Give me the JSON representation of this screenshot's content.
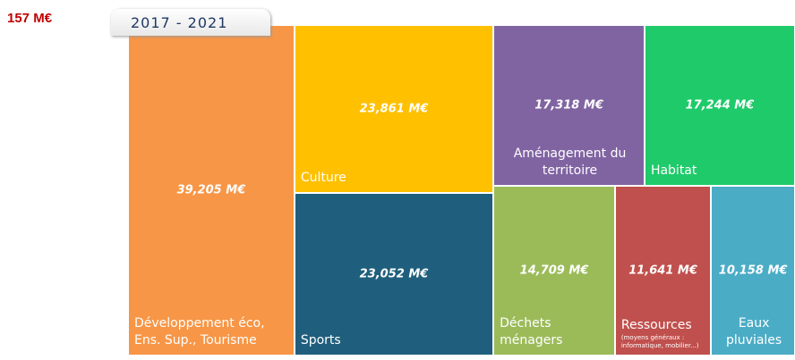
{
  "chart_data": {
    "type": "treemap",
    "title": "157 M€",
    "subtitle": "2017 - 2021",
    "categories": [
      "Développement éco, Ens. Sup., Tourisme",
      "Culture",
      "Sports",
      "Aménagement du territoire",
      "Habitat",
      "Déchets ménagers",
      "Ressources",
      "Eaux pluviales"
    ],
    "values": [
      39.205,
      23.861,
      23.052,
      17.318,
      17.244,
      14.709,
      11.641,
      10.158
    ],
    "value_labels": [
      "39,205 M€",
      "23,861 M€",
      "23,052 M€",
      "17,318 M€",
      "17,244 M€",
      "14,709 M€",
      "11,641 M€",
      "10,158 M€"
    ],
    "colors": [
      "#f79646",
      "#ffc000",
      "#1f5f7d",
      "#8064a2",
      "#1fca6a",
      "#9bbb59",
      "#c0504d",
      "#4bacc6"
    ],
    "annotations": [
      "(moyens généraux : informatique, mobilier...)"
    ]
  }
}
